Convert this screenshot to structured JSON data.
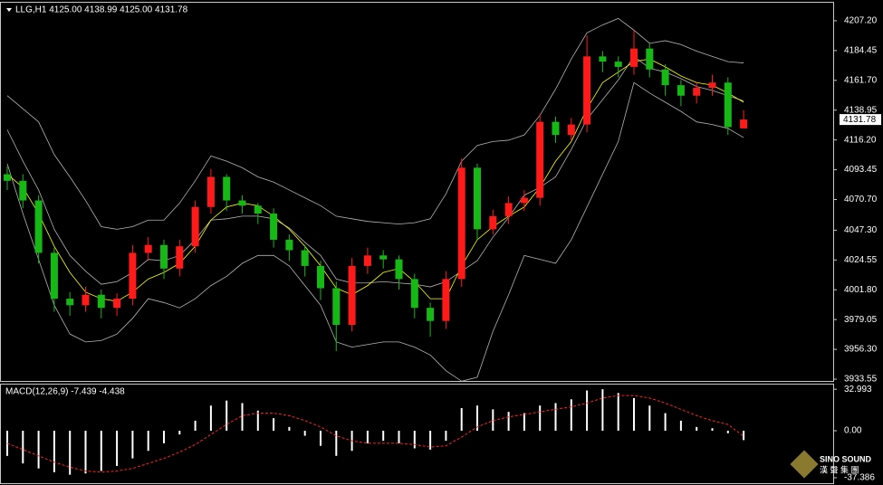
{
  "header": "LLG,H1  4125.00 4138.99 4125.00 4131.78",
  "watermark": {
    "brand": "SINO SOUND",
    "sub": "漢 聲 集 團"
  },
  "chart_data": [
    {
      "type": "candlestick",
      "up_color": "#ff1a1a",
      "down_color": "#16b816",
      "ylim": [
        3931.5,
        4219.6
      ],
      "yticks": [
        {
          "value": 4207.2,
          "label": "4207.20"
        },
        {
          "value": 4184.45,
          "label": "4184.45"
        },
        {
          "value": 4161.7,
          "label": "4161.70"
        },
        {
          "value": 4138.95,
          "label": "4138.95"
        },
        {
          "value": 4116.2,
          "label": "4116.20"
        },
        {
          "value": 4093.45,
          "label": "4093.45"
        },
        {
          "value": 4070.7,
          "label": "4070.70"
        },
        {
          "value": 4047.3,
          "label": "4047.30"
        },
        {
          "value": 4024.55,
          "label": "4024.55"
        },
        {
          "value": 4001.8,
          "label": "4001.80"
        },
        {
          "value": 3979.05,
          "label": "3979.05"
        },
        {
          "value": 3956.3,
          "label": "3956.30"
        },
        {
          "value": 3933.55,
          "label": "3933.55"
        }
      ],
      "open": [
        4090,
        4085,
        4070,
        4030,
        3995,
        3990,
        3998,
        3988,
        3995,
        4030,
        4036,
        4018,
        4035,
        4065,
        4088,
        4070,
        4066,
        4060,
        4040,
        4032,
        4020,
        4003,
        3975,
        4020,
        4028,
        4025,
        4010,
        3988,
        3978,
        4010,
        4095,
        4048,
        4058,
        4068,
        4072,
        4130,
        4120,
        4128,
        4180,
        4176,
        4172,
        4186,
        4170,
        4158,
        4150,
        4156,
        4160,
        4125
      ],
      "high": [
        4096,
        4090,
        4074,
        4034,
        4000,
        4004,
        4002,
        3999,
        4036,
        4042,
        4040,
        4040,
        4070,
        4094,
        4090,
        4074,
        4068,
        4064,
        4044,
        4036,
        4024,
        4008,
        4026,
        4034,
        4032,
        4028,
        4014,
        3992,
        4016,
        4102,
        4098,
        4063,
        4073,
        4078,
        4136,
        4134,
        4133,
        4196,
        4184,
        4180,
        4200,
        4190,
        4174,
        4162,
        4160,
        4166,
        4164,
        4138.99
      ],
      "low": [
        4078,
        4064,
        4022,
        3985,
        3982,
        3985,
        3980,
        3982,
        3990,
        4024,
        4010,
        4012,
        4030,
        4060,
        4062,
        4060,
        4052,
        4034,
        4024,
        4012,
        3994,
        3955,
        3970,
        4014,
        4018,
        4002,
        3980,
        3966,
        3972,
        4004,
        4040,
        4044,
        4052,
        4062,
        4066,
        4114,
        4116,
        4122,
        4168,
        4164,
        4166,
        4164,
        4150,
        4142,
        4144,
        4150,
        4120,
        4125
      ],
      "close": [
        4085,
        4070,
        4030,
        3995,
        3990,
        3998,
        3988,
        3995,
        4030,
        4036,
        4018,
        4035,
        4065,
        4088,
        4070,
        4066,
        4060,
        4040,
        4032,
        4020,
        4003,
        3975,
        4020,
        4028,
        4025,
        4010,
        3988,
        3978,
        4010,
        4095,
        4048,
        4058,
        4068,
        4072,
        4130,
        4120,
        4128,
        4180,
        4176,
        4172,
        4186,
        4170,
        4158,
        4150,
        4156,
        4160,
        4126,
        4131.78
      ],
      "lines": [
        {
          "color": "#b4b4b4",
          "values": [
            4150,
            4140,
            4130,
            4105,
            4088,
            4070,
            4050,
            4048,
            4050,
            4055,
            4055,
            4068,
            4085,
            4104,
            4100,
            4095,
            4088,
            4084,
            4078,
            4072,
            4066,
            4058,
            4056,
            4054,
            4053,
            4052,
            4053,
            4056,
            4075,
            4100,
            4112,
            4115,
            4116,
            4120,
            4135,
            4155,
            4178,
            4198,
            4204,
            4209,
            4200,
            4190,
            4192,
            4189,
            4184,
            4180,
            4176,
            4175
          ]
        },
        {
          "color": "#b4b4b4",
          "values": [
            4124,
            4100,
            4078,
            4048,
            4028,
            4016,
            4006,
            4008,
            4015,
            4025,
            4024,
            4028,
            4040,
            4055,
            4056,
            4058,
            4058,
            4056,
            4049,
            4038,
            4028,
            4010,
            4007,
            4007,
            4008,
            4007,
            4006,
            4004,
            4008,
            4016,
            4024,
            4042,
            4057,
            4074,
            4080,
            4088,
            4109,
            4132,
            4147,
            4162,
            4180,
            4171,
            4168,
            4163,
            4157,
            4154,
            4150,
            4146
          ]
        },
        {
          "color": "#b4b4b4",
          "values": [
            4098,
            4060,
            4025,
            3990,
            3968,
            3962,
            3963,
            3968,
            3980,
            3995,
            3992,
            3988,
            3995,
            4005,
            4012,
            4022,
            4028,
            4028,
            4020,
            4005,
            3990,
            3962,
            3958,
            3960,
            3962,
            3962,
            3958,
            3952,
            3940,
            3932,
            3935,
            3970,
            3998,
            4028,
            4025,
            4022,
            4040,
            4065,
            4090,
            4115,
            4160,
            4152,
            4145,
            4138,
            4130,
            4128,
            4125,
            4118
          ]
        },
        {
          "color": "#ffff00",
          "values": [
            4090,
            4080,
            4060,
            4035,
            4015,
            4000,
            3995,
            3993,
            4000,
            4010,
            4015,
            4022,
            4035,
            4055,
            4065,
            4068,
            4066,
            4058,
            4048,
            4035,
            4020,
            4003,
            3998,
            4005,
            4015,
            4018,
            4008,
            3995,
            3995,
            4020,
            4040,
            4050,
            4058,
            4065,
            4080,
            4100,
            4115,
            4140,
            4160,
            4168,
            4176,
            4178,
            4172,
            4165,
            4160,
            4158,
            4152,
            4145
          ]
        }
      ]
    },
    {
      "type": "macd",
      "title": "MACD(12,26,9) -7.439 -4.438",
      "ylim": [
        -41,
        36
      ],
      "yticks": [
        32.993,
        {
          "value": 0,
          "label": "0.00"
        },
        -37.386
      ],
      "hist_color": "#ffffff",
      "signal_color": "#ff2020",
      "values": [
        -20,
        -26,
        -30,
        -33,
        -35,
        -34,
        -32,
        -28,
        -22,
        -16,
        -10,
        -3,
        8,
        20,
        24,
        22,
        16,
        10,
        3,
        -4,
        -12,
        -20,
        -16,
        -10,
        -8,
        -10,
        -14,
        -15,
        -8,
        18,
        20,
        17,
        15,
        14,
        20,
        22,
        25,
        32,
        33,
        30,
        26,
        20,
        14,
        8,
        3,
        2,
        -2,
        -7.439
      ],
      "signal": [
        -10,
        -15,
        -20,
        -25,
        -29,
        -32,
        -33,
        -32,
        -30,
        -26,
        -22,
        -17,
        -11,
        -3,
        5,
        12,
        14,
        14,
        12,
        8,
        3,
        -4,
        -8,
        -10,
        -10,
        -10,
        -11,
        -13,
        -12,
        -5,
        3,
        8,
        11,
        13,
        15,
        17,
        19,
        22,
        26,
        28,
        28,
        26,
        22,
        17,
        12,
        8,
        5,
        -4.438
      ]
    }
  ]
}
